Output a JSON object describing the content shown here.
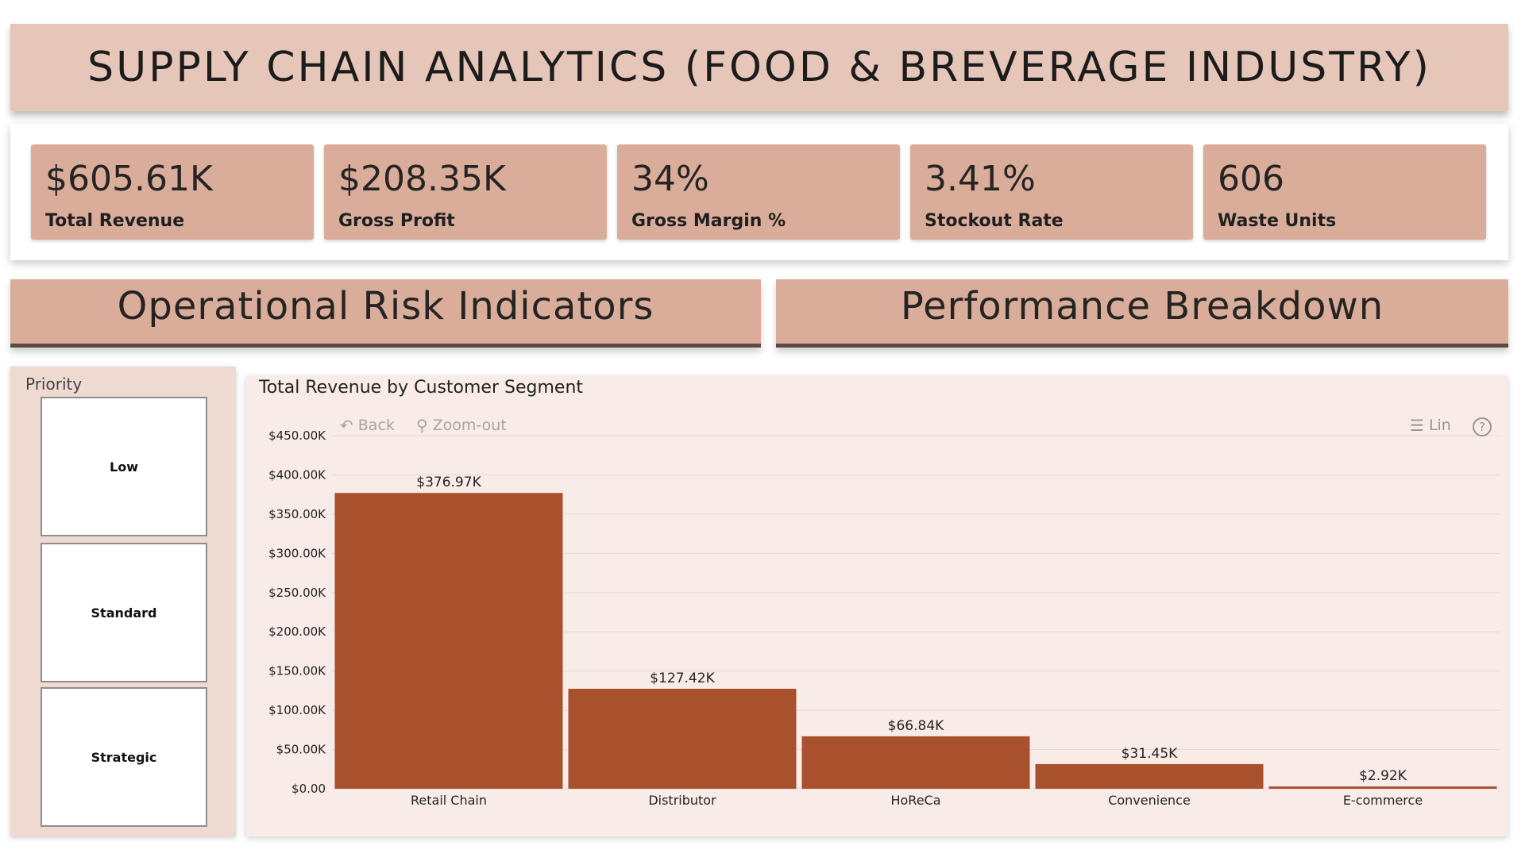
{
  "header": {
    "title": "SUPPLY CHAIN ANALYTICS (FOOD & BREVERAGE INDUSTRY)"
  },
  "kpis": [
    {
      "value": "$605.61K",
      "label": "Total Revenue"
    },
    {
      "value": "$208.35K",
      "label": "Gross Profit"
    },
    {
      "value": "34%",
      "label": "Gross Margin %"
    },
    {
      "value": "3.41%",
      "label": "Stockout Rate"
    },
    {
      "value": "606",
      "label": "Waste Units"
    }
  ],
  "sections": {
    "left_title": "Operational Risk Indicators",
    "right_title": "Performance Breakdown"
  },
  "slicer": {
    "title": "Priority",
    "options": [
      "Low",
      "Standard",
      "Strategic"
    ]
  },
  "chart_toolbar": {
    "back_label": "Back",
    "zoom_out_label": "Zoom-out",
    "lin_label": "Lin",
    "help_symbol": "?"
  },
  "colors": {
    "bar": "#a9502c",
    "header_bg": "#e6c6b8",
    "card_bg": "#d9ad9a",
    "chart_bg": "#f8ebe8"
  },
  "chart_data": {
    "type": "bar",
    "title": "Total Revenue by Customer Segment",
    "categories": [
      "Retail Chain",
      "Distributor",
      "HoReCa",
      "Convenience",
      "E-commerce"
    ],
    "values": [
      376.97,
      127.42,
      66.84,
      31.45,
      2.92
    ],
    "data_labels": [
      "$376.97K",
      "$127.42K",
      "$66.84K",
      "$31.45K",
      "$2.92K"
    ],
    "ylim": [
      0,
      450
    ],
    "y_ticks": [
      0,
      50,
      100,
      150,
      200,
      250,
      300,
      350,
      400,
      450
    ],
    "y_tick_labels": [
      "$0.00",
      "$50.00K",
      "$100.00K",
      "$150.00K",
      "$200.00K",
      "$250.00K",
      "$300.00K",
      "$350.00K",
      "$400.00K",
      "$450.00K"
    ],
    "xlabel": "",
    "ylabel": "",
    "grid": true
  }
}
